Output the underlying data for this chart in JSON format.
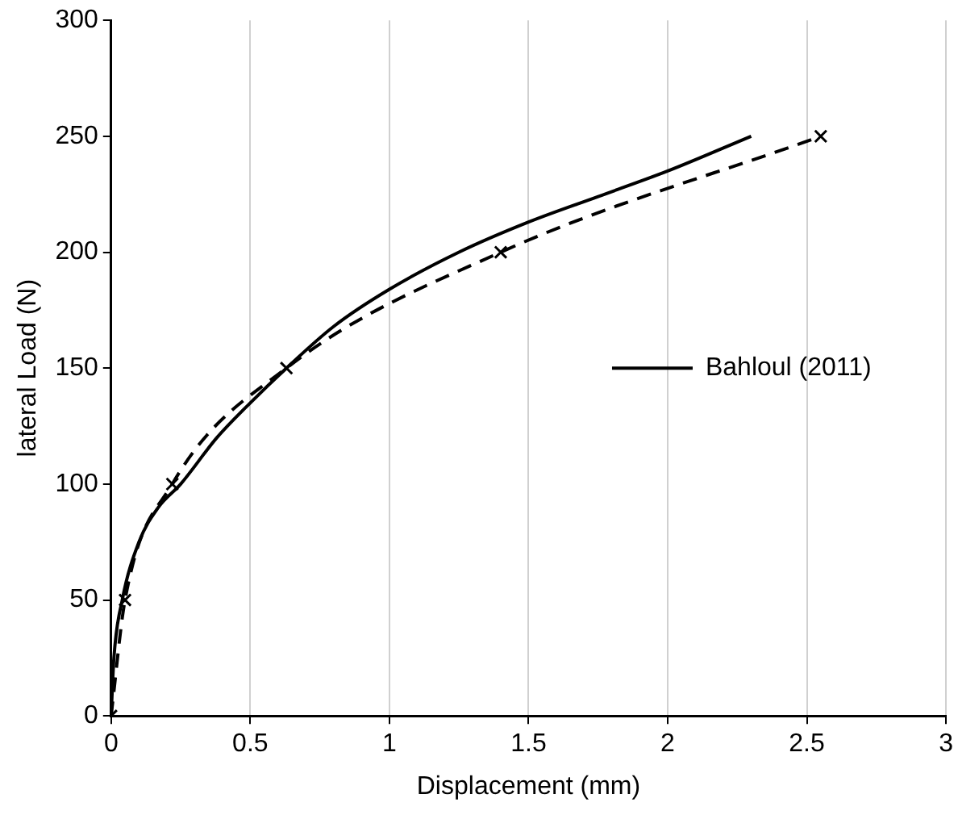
{
  "chart_data": {
    "type": "line",
    "xlabel": "Displacement (mm)",
    "ylabel": "lateral Load (N)",
    "xlim": [
      0,
      3
    ],
    "xticks": [
      0,
      0.5,
      1,
      1.5,
      2,
      2.5,
      3
    ],
    "ylim": [
      0,
      300
    ],
    "yticks": [
      0,
      50,
      100,
      150,
      200,
      250,
      300
    ],
    "grid": "x",
    "legend": "right",
    "series": [
      {
        "name": "Bahloul (2011)",
        "color": "#000000",
        "line_style": "solid",
        "marker": "none",
        "x": [
          0,
          0.01,
          0.04,
          0.1,
          0.17,
          0.25,
          0.38,
          0.5,
          0.63,
          0.8,
          1,
          1.25,
          1.5,
          1.75,
          2,
          2.3
        ],
        "values": [
          0,
          25,
          50,
          75,
          90,
          100,
          120,
          135,
          150,
          168,
          184,
          200,
          213,
          224,
          235,
          250
        ]
      },
      {
        "color": "#000000",
        "line_style": "dashed",
        "marker": "cross",
        "x": [
          0,
          0.05,
          0.22,
          0.63,
          1.4,
          2.55
        ],
        "values": [
          0,
          50,
          100,
          150,
          200,
          250
        ]
      }
    ]
  }
}
